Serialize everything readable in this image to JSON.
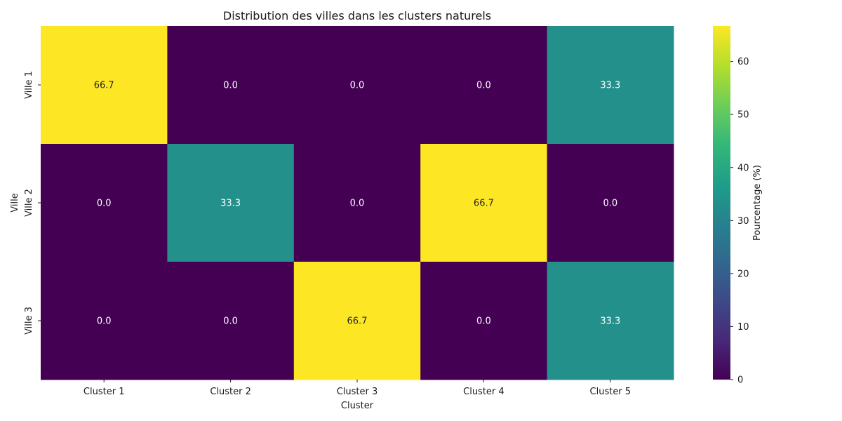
{
  "chart_data": {
    "type": "heatmap",
    "title": "Distribution des villes dans les clusters naturels",
    "xlabel": "Cluster",
    "ylabel": "Ville",
    "x_categories": [
      "Cluster 1",
      "Cluster 2",
      "Cluster 3",
      "Cluster 4",
      "Cluster 5"
    ],
    "y_categories": [
      "Ville 1",
      "Ville 2",
      "Ville 3"
    ],
    "values": [
      [
        66.7,
        0.0,
        0.0,
        0.0,
        33.3
      ],
      [
        0.0,
        33.3,
        0.0,
        66.7,
        0.0
      ],
      [
        0.0,
        0.0,
        66.7,
        0.0,
        33.3
      ]
    ],
    "value_labels": [
      [
        "66.7",
        "0.0",
        "0.0",
        "0.0",
        "33.3"
      ],
      [
        "0.0",
        "33.3",
        "0.0",
        "66.7",
        "0.0"
      ],
      [
        "0.0",
        "0.0",
        "66.7",
        "0.0",
        "33.3"
      ]
    ],
    "colormap": "viridis",
    "colormap_stops": [
      "#440154",
      "#482878",
      "#3e4989",
      "#31688e",
      "#26828e",
      "#1f9e89",
      "#35b779",
      "#6ece58",
      "#b5de2b",
      "#fde725"
    ],
    "colorbar": {
      "label": "Pourcentage (%)",
      "range": [
        0,
        66.7
      ],
      "ticks": [
        0,
        10,
        20,
        30,
        40,
        50,
        60
      ],
      "tick_labels": [
        "0",
        "10",
        "20",
        "30",
        "40",
        "50",
        "60"
      ]
    },
    "annotation_colors": {
      "dark_bg": "#ffffff",
      "light_bg": "#262626"
    }
  }
}
